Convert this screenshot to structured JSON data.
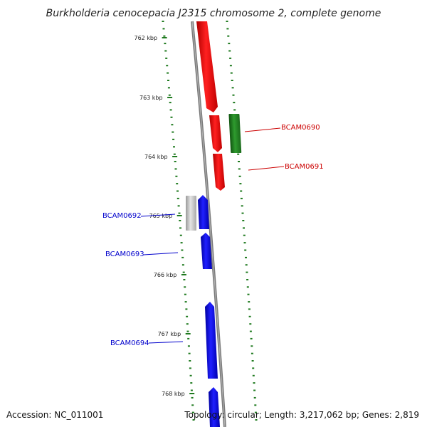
{
  "title": "Burkholderia cenocepacia J2315 chromosome 2, complete genome",
  "accession_text": "Accession: NC_011001",
  "topology_text": "Topology: circular; Length: 3,217,062 bp; Genes: 2,819",
  "colors": {
    "backbone": "#808080",
    "tick": "#1f7a1f",
    "gene_red": "#ff0000",
    "gene_green": "#228b22",
    "gene_blue": "#0000ee",
    "gene_grey": "#c8c8c8",
    "label_red": "#cc0000",
    "label_blue": "#0000cc"
  },
  "kbp_labels": [
    "762 kbp",
    "763 kbp",
    "764 kbp",
    "765 kbp",
    "766 kbp",
    "767 kbp",
    "768 kbp"
  ],
  "gene_labels": [
    {
      "name": "BCAM0690",
      "color": "red"
    },
    {
      "name": "BCAM0691",
      "color": "red"
    },
    {
      "name": "BCAM0692",
      "color": "blue"
    },
    {
      "name": "BCAM0693",
      "color": "blue"
    },
    {
      "name": "BCAM0694",
      "color": "blue"
    }
  ]
}
